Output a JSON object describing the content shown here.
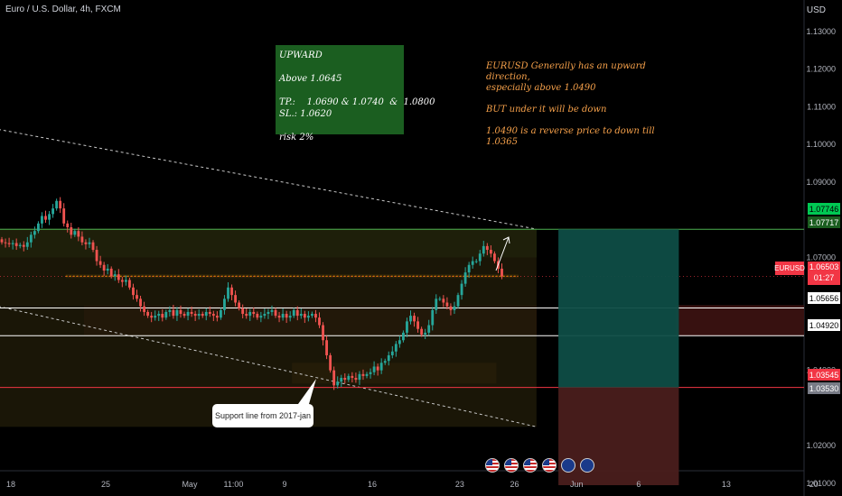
{
  "header": {
    "symbol_title": "Euro / U.S. Dollar, 4h, FXCM",
    "currency": "USD"
  },
  "note_box": {
    "line1": "UPWARD",
    "line2": "Above 1.0645",
    "line3": "TP.:    1.0690 & 1.0740  &  1.0800",
    "line4": "SL.: 1.0620",
    "line5": "risk 2%"
  },
  "annotation": {
    "line1": "EURUSD Generally has an upward direction,",
    "line2": "especially above 1.0490",
    "line3": "BUT under it will be down",
    "line4": "1.0490 is a reverse price to down till 1.0365"
  },
  "callout": {
    "text": "Support line from 2017-jan"
  },
  "price_tags": {
    "green_top": "1.07746",
    "green_bottom": "1.07717",
    "white_1": "1.05656",
    "white_2": "1.04920",
    "red": "1.03545",
    "gray": "1.03530"
  },
  "current": {
    "symbol": "EURUSD",
    "price": "1.06503",
    "countdown": "01:27"
  },
  "colors": {
    "bull": "#26a69a",
    "bear": "#ef5350",
    "green_zone": "#1f3d12",
    "red_zone": "#3a1210",
    "orange_zone": "#8a5a10"
  },
  "chart_data": {
    "type": "candlestick",
    "title": "Euro / U.S. Dollar, 4h, FXCM",
    "y_axis": {
      "ticks": [
        "1.13000",
        "1.12000",
        "1.11000",
        "1.10000",
        "1.09000",
        "1.07000",
        "1.04000",
        "1.02000",
        "1.01000"
      ],
      "ylim": [
        1.0095,
        1.135
      ]
    },
    "x_axis": {
      "ticks": [
        {
          "label": "18",
          "x_index": 0
        },
        {
          "label": "25",
          "x_index": 26
        },
        {
          "label": "May",
          "x_index": 49
        },
        {
          "label": "11:00",
          "x_index": 61
        },
        {
          "label": "9",
          "x_index": 75
        },
        {
          "label": "16",
          "x_index": 99
        },
        {
          "label": "23",
          "x_index": 123
        },
        {
          "label": "26",
          "x_index": 138
        },
        {
          "label": "Jun",
          "x_index": 155
        },
        {
          "label": "6",
          "x_index": 172
        },
        {
          "label": "13",
          "x_index": 196
        },
        {
          "label": "20",
          "x_index": 220
        }
      ]
    },
    "series": [
      {
        "close": [
          1.074,
          1.0738,
          1.0735,
          1.0738,
          1.073,
          1.0733,
          1.0728,
          1.074,
          1.076,
          1.077,
          1.079,
          1.081,
          1.08,
          1.0815,
          1.083,
          1.085,
          1.083,
          1.079,
          1.078,
          1.076,
          1.077,
          1.0755,
          1.074,
          1.0735,
          1.074,
          1.072,
          1.069,
          1.068,
          1.0665,
          1.067,
          1.065,
          1.0655,
          1.064,
          1.0635,
          1.064,
          1.062,
          1.06,
          1.059,
          1.057,
          1.0555,
          1.0545,
          1.054,
          1.0545,
          1.055,
          1.054,
          1.0555,
          1.056,
          1.0545,
          1.056,
          1.055,
          1.0545,
          1.0555,
          1.055,
          1.0545,
          1.055,
          1.0545,
          1.0555,
          1.055,
          1.0545,
          1.054,
          1.056,
          1.059,
          1.062,
          1.06,
          1.058,
          1.0565,
          1.055,
          1.0545,
          1.0555,
          1.055,
          1.054,
          1.0545,
          1.055,
          1.0555,
          1.056,
          1.0545,
          1.054,
          1.055,
          1.054,
          1.0545,
          1.056,
          1.0545,
          1.055,
          1.054,
          1.0545,
          1.055,
          1.054,
          1.052,
          1.048,
          1.044,
          1.04,
          1.036,
          1.037,
          1.038,
          1.0375,
          1.0385,
          1.038,
          1.0375,
          1.039,
          1.0385,
          1.039,
          1.0395,
          1.041,
          1.04,
          1.042,
          1.0425,
          1.044,
          1.045,
          1.047,
          1.048,
          1.05,
          1.053,
          1.0545,
          1.053,
          1.051,
          1.0495,
          1.05,
          1.052,
          1.056,
          1.059,
          1.059,
          1.058,
          1.057,
          1.056,
          1.057,
          1.06,
          1.063,
          1.066,
          1.068,
          1.069,
          1.069,
          1.071,
          1.073,
          1.072,
          1.071,
          1.069,
          1.067,
          1.065
        ]
      }
    ],
    "levels": [
      {
        "price": 1.07746,
        "color": "#4caf50",
        "style": "solid"
      },
      {
        "price": 1.05656,
        "color": "#ffffff",
        "style": "solid"
      },
      {
        "price": 1.0492,
        "color": "#ffffff",
        "style": "solid"
      },
      {
        "price": 1.03545,
        "color": "#f23645",
        "style": "solid"
      }
    ],
    "zones": [
      {
        "name": "green-resistance-zone",
        "from_index": 0,
        "to_index": 147,
        "y_top": 1.0776,
        "y_bottom": 1.07
      },
      {
        "name": "orange-entry-zone",
        "from_index": 18,
        "to_index": 142,
        "y_top": 1.0655,
        "y_bottom": 1.0645
      },
      {
        "name": "red-zone",
        "from_index": 23,
        "to_index": 147,
        "y_top": 1.0573,
        "y_bottom": 1.0492
      },
      {
        "name": "orange-support-zone",
        "from_index": 80,
        "to_index": 136,
        "y_top": 1.042,
        "y_bottom": 1.0365
      },
      {
        "name": "dark-channel",
        "from_index": 0,
        "to_index": 147,
        "y_top": 1.0776,
        "y_bottom": 1.025
      }
    ],
    "trendlines": [
      {
        "name": "upper-trendline",
        "x1": 0,
        "y1": 1.104,
        "x2": 147,
        "y2": 1.0775
      },
      {
        "name": "lower-trendline",
        "x1": 0,
        "y1": 1.057,
        "x2": 147,
        "y2": 1.025
      }
    ],
    "position": {
      "from_index": 152,
      "to_index": 185,
      "entry": 1.07746,
      "target_top": 1.07746,
      "stop_bottom": 1.0095,
      "split": 1.03545
    }
  }
}
